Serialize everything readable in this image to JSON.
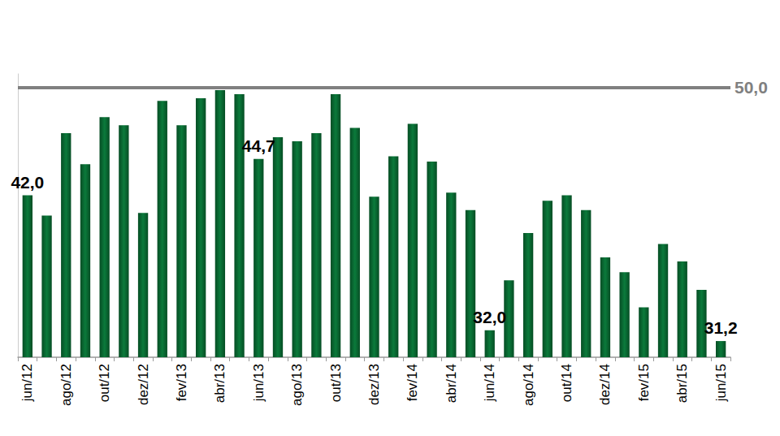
{
  "chart_data": {
    "type": "bar",
    "categories": [
      "jun/12",
      null,
      "ago/12",
      null,
      "out/12",
      null,
      "dez/12",
      null,
      "fev/13",
      null,
      "abr/13",
      null,
      "jun/13",
      null,
      "ago/13",
      null,
      "out/13",
      null,
      "dez/13",
      null,
      "fev/14",
      null,
      "abr/14",
      null,
      "jun/14",
      null,
      "ago/14",
      null,
      "out/14",
      null,
      "dez/14",
      null,
      "fev/15",
      null,
      "abr/15",
      null,
      "jun/15"
    ],
    "values": [
      42.0,
      40.5,
      46.6,
      44.3,
      47.8,
      47.2,
      40.7,
      49.0,
      47.2,
      49.2,
      49.8,
      49.5,
      44.7,
      46.3,
      46.0,
      46.6,
      49.5,
      47.0,
      41.9,
      44.9,
      47.3,
      44.5,
      42.2,
      40.9,
      32.0,
      35.7,
      39.2,
      41.6,
      42.0,
      40.9,
      37.4,
      36.3,
      33.7,
      38.4,
      37.1,
      35.0,
      31.2
    ],
    "value_labels": [
      "42,0",
      null,
      null,
      null,
      null,
      null,
      null,
      null,
      null,
      null,
      null,
      null,
      "44,7",
      null,
      null,
      null,
      null,
      null,
      null,
      null,
      null,
      null,
      null,
      null,
      "32,0",
      null,
      null,
      null,
      null,
      null,
      null,
      null,
      null,
      null,
      null,
      null,
      "31,2"
    ],
    "data_labels": true,
    "color": "#0b7a3b",
    "ylim": [
      30,
      51
    ],
    "yticks": [],
    "tick_labels": "x",
    "grid": false,
    "annotations": [
      {
        "type": "hline",
        "value": 50,
        "label": "50,0",
        "color": "#808080"
      }
    ]
  }
}
